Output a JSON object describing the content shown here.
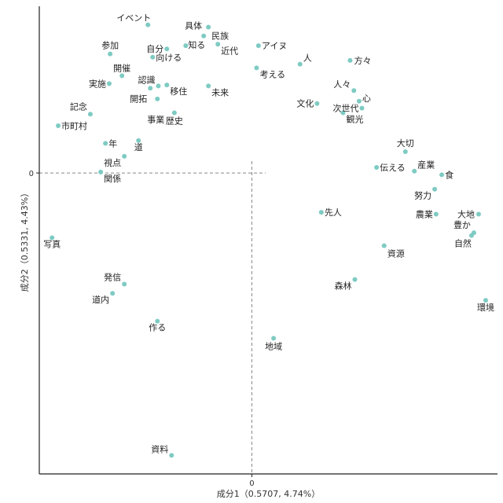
{
  "chart_data": {
    "type": "scatter",
    "xlabel": "成分1（0.5707, 4.74%）",
    "ylabel": "成分2（0.5331, 4.43%）",
    "x_ticks": [
      {
        "value": 0,
        "label": "0"
      }
    ],
    "y_ticks": [
      {
        "value": 0,
        "label": "0"
      }
    ],
    "xlim": [
      -4.5,
      5.2
    ],
    "ylim": [
      -6.5,
      3.6
    ],
    "grid": false,
    "reference_lines": {
      "x": 0,
      "y": 0,
      "style": "dashed"
    },
    "point_color": "#7ecbc3",
    "points": [
      {
        "label": "イベント",
        "x": -2.2,
        "y": 3.2
      },
      {
        "label": "具体",
        "x": -0.92,
        "y": 3.15
      },
      {
        "label": "民族",
        "x": -1.02,
        "y": 2.96
      },
      {
        "label": "知る",
        "x": -1.4,
        "y": 2.75
      },
      {
        "label": "近代",
        "x": -0.72,
        "y": 2.78
      },
      {
        "label": "自分",
        "x": -1.8,
        "y": 2.68
      },
      {
        "label": "向ける",
        "x": -2.1,
        "y": 2.5
      },
      {
        "label": "参加",
        "x": -3.0,
        "y": 2.57
      },
      {
        "label": "アイヌ",
        "x": 0.14,
        "y": 2.75
      },
      {
        "label": "人",
        "x": 1.02,
        "y": 2.35
      },
      {
        "label": "方々",
        "x": 2.08,
        "y": 2.43
      },
      {
        "label": "考える",
        "x": 0.1,
        "y": 2.27
      },
      {
        "label": "開催",
        "x": -2.75,
        "y": 2.1
      },
      {
        "label": "実施",
        "x": -3.02,
        "y": 1.93
      },
      {
        "label": "認識",
        "x": -1.98,
        "y": 1.88
      },
      {
        "label": "未来",
        "x": -0.92,
        "y": 1.88
      },
      {
        "label": "開拓",
        "x": -2.15,
        "y": 1.83
      },
      {
        "label": "移住",
        "x": -1.8,
        "y": 1.9
      },
      {
        "label": "人々",
        "x": 2.16,
        "y": 1.78
      },
      {
        "label": "心",
        "x": 2.27,
        "y": 1.55
      },
      {
        "label": "文化",
        "x": 1.38,
        "y": 1.5
      },
      {
        "label": "次世代",
        "x": 2.33,
        "y": 1.4
      },
      {
        "label": "事業",
        "x": -2.0,
        "y": 1.6
      },
      {
        "label": "記念",
        "x": -3.42,
        "y": 1.27
      },
      {
        "label": "歴史",
        "x": -1.64,
        "y": 1.3
      },
      {
        "label": "観光",
        "x": 1.93,
        "y": 1.3
      },
      {
        "label": "市町村",
        "x": -4.1,
        "y": 1.02
      },
      {
        "label": "年",
        "x": -3.1,
        "y": 0.64
      },
      {
        "label": "道",
        "x": -2.4,
        "y": 0.7
      },
      {
        "label": "大切",
        "x": 3.25,
        "y": 0.46
      },
      {
        "label": "視点",
        "x": -2.7,
        "y": 0.36
      },
      {
        "label": "伝える",
        "x": 2.64,
        "y": 0.12
      },
      {
        "label": "産業",
        "x": 3.44,
        "y": 0.04
      },
      {
        "label": "食",
        "x": 4.02,
        "y": -0.04
      },
      {
        "label": "関係",
        "x": -3.2,
        "y": 0.02
      },
      {
        "label": "努力",
        "x": 3.87,
        "y": -0.35
      },
      {
        "label": "先人",
        "x": 1.47,
        "y": -0.85
      },
      {
        "label": "農業",
        "x": 3.9,
        "y": -0.89
      },
      {
        "label": "大地",
        "x": 4.8,
        "y": -0.89
      },
      {
        "label": "豊か",
        "x": 4.7,
        "y": -1.29
      },
      {
        "label": "自然",
        "x": 4.65,
        "y": -1.35
      },
      {
        "label": "写真",
        "x": -4.23,
        "y": -1.4
      },
      {
        "label": "資源",
        "x": 2.8,
        "y": -1.57
      },
      {
        "label": "森林",
        "x": 2.18,
        "y": -2.3
      },
      {
        "label": "発信",
        "x": -2.7,
        "y": -2.4
      },
      {
        "label": "道内",
        "x": -2.95,
        "y": -2.6
      },
      {
        "label": "環境",
        "x": 4.95,
        "y": -2.75
      },
      {
        "label": "作る",
        "x": -2.0,
        "y": -3.2
      },
      {
        "label": "地域",
        "x": 0.46,
        "y": -3.57
      },
      {
        "label": "資料",
        "x": -1.7,
        "y": -6.1
      }
    ]
  }
}
